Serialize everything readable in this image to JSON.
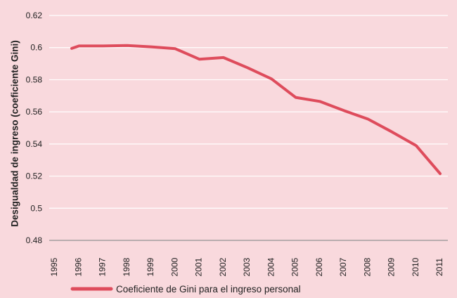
{
  "chart_data": {
    "type": "line",
    "title": "",
    "xlabel": "",
    "ylabel": "Desigualdad de ingreso (coeficiente Gini)",
    "ylim": [
      0.48,
      0.62
    ],
    "yticks": [
      "0.62",
      "0.6",
      "0.58",
      "0.56",
      "0.54",
      "0.52",
      "0.5",
      "0.48"
    ],
    "xlim": [
      1995,
      2011
    ],
    "xticks": [
      "1995",
      "1996",
      "1997",
      "1998",
      "1999",
      "2000",
      "2001",
      "2002",
      "2003",
      "2004",
      "2005",
      "2006",
      "2007",
      "2008",
      "2009",
      "2010",
      "2011"
    ],
    "grid": "horizontal",
    "legend_position": "bottom-left",
    "line_color": "#de4c5c",
    "series": [
      {
        "name": "Coeficiente de Gini para el ingreso personal",
        "x": [
          1995.7,
          1996,
          1997,
          1998,
          1999,
          2000,
          2001,
          2002,
          2003,
          2004,
          2005,
          2006,
          2007,
          2008,
          2009,
          2010,
          2011
        ],
        "y": [
          0.5995,
          0.601,
          0.601,
          0.6013,
          0.6005,
          0.5993,
          0.5928,
          0.5938,
          0.5875,
          0.5805,
          0.569,
          0.5665,
          0.5608,
          0.5555,
          0.5475,
          0.539,
          0.5215
        ]
      }
    ]
  }
}
